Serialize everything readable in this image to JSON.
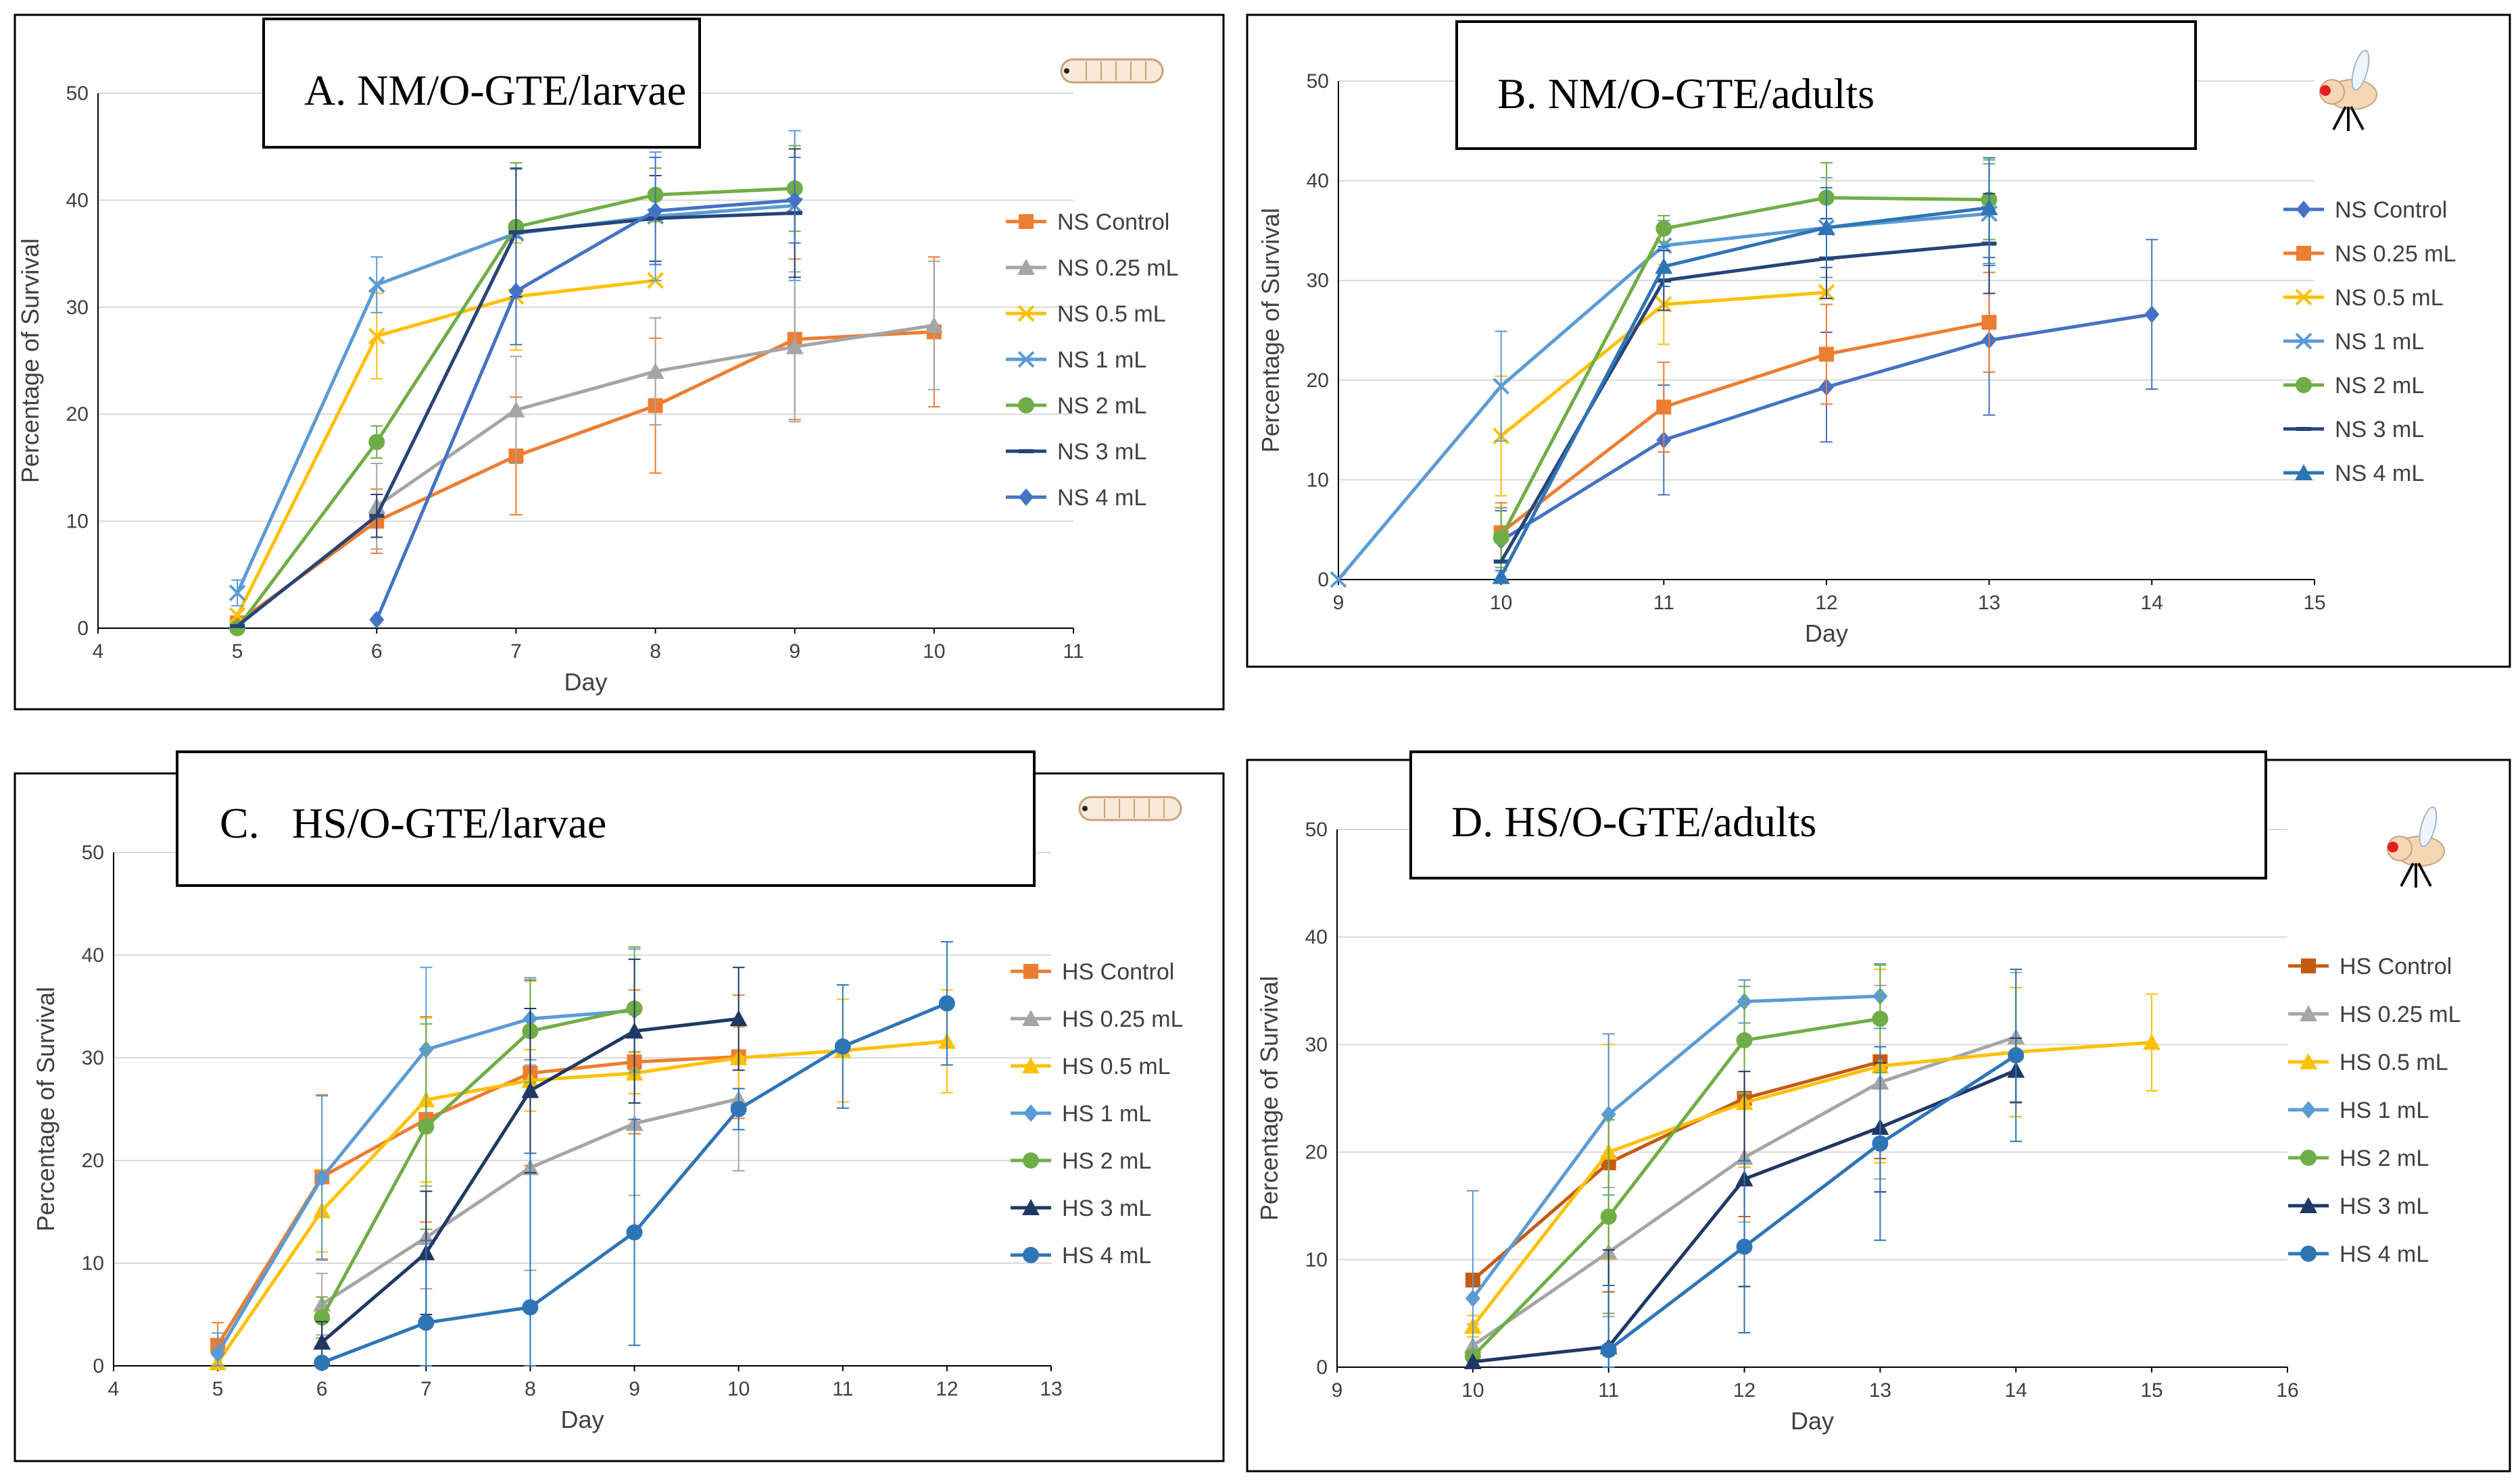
{
  "chart_data": [
    {
      "type": "line",
      "title": "A. NM/O-GTE/larvae",
      "xlabel": "Day",
      "ylabel": "Percentage of Survival",
      "xlim": [
        4,
        11
      ],
      "ylim": [
        0,
        50
      ],
      "xticks": [
        "4",
        "5",
        "6",
        "7",
        "8",
        "9",
        "10",
        "11"
      ],
      "yticks": [
        "0",
        "10",
        "20",
        "30",
        "40",
        "50"
      ],
      "grid": true,
      "legend_position": "right",
      "icon": "larva-icon",
      "series": [
        {
          "name": "NS Control",
          "color": "#ED7D31",
          "marker": "square",
          "x": [
            5,
            6,
            7,
            8,
            9,
            10
          ],
          "y": [
            0.5,
            10,
            16.1,
            20.8,
            27,
            27.7
          ],
          "err": [
            0,
            3,
            5.5,
            6.3,
            7.5,
            7
          ]
        },
        {
          "name": "NS 0.25 mL",
          "color": "#A5A5A5",
          "marker": "triangle",
          "x": [
            6,
            7,
            8,
            9,
            10
          ],
          "y": [
            11.4,
            20.4,
            24,
            26.3,
            28.3
          ],
          "err": [
            4,
            5,
            5,
            7,
            6
          ]
        },
        {
          "name": "NS 0.5 mL",
          "color": "#FFC000",
          "marker": "x",
          "x": [
            5,
            6,
            7,
            8
          ],
          "y": [
            1.2,
            27.3,
            31,
            32.5
          ],
          "err": [
            0,
            4,
            5,
            0
          ]
        },
        {
          "name": "NS 1 mL",
          "color": "#5B9BD5",
          "marker": "x",
          "x": [
            5,
            6,
            7,
            8,
            9
          ],
          "y": [
            3.3,
            32.1,
            36.9,
            38.5,
            39.5
          ],
          "err": [
            1.2,
            2.6,
            6,
            6,
            7
          ]
        },
        {
          "name": "NS 2 mL",
          "color": "#70AD47",
          "marker": "circle",
          "x": [
            5,
            6,
            7,
            8,
            9
          ],
          "y": [
            0,
            17.4,
            37.5,
            40.5,
            41.1
          ],
          "err": [
            0,
            1.5,
            6,
            2.5,
            4
          ]
        },
        {
          "name": "NS 3 mL",
          "color": "#264478",
          "marker": "dash",
          "x": [
            5,
            6,
            7,
            8,
            9
          ],
          "y": [
            0.2,
            10.5,
            37,
            38.3,
            38.8
          ],
          "err": [
            0,
            2,
            6,
            4,
            6
          ]
        },
        {
          "name": "NS 4 mL",
          "color": "#4472C4",
          "marker": "diamond",
          "x": [
            6,
            7,
            8,
            9
          ],
          "y": [
            0.8,
            31.5,
            39,
            40
          ],
          "err": [
            0,
            5,
            5,
            4
          ]
        }
      ]
    },
    {
      "type": "line",
      "title": "B. NM/O-GTE/adults",
      "xlabel": "Day",
      "ylabel": "Percentage of Survival",
      "xlim": [
        9,
        15
      ],
      "ylim": [
        0,
        50
      ],
      "xticks": [
        "9",
        "10",
        "11",
        "12",
        "13",
        "14",
        "15"
      ],
      "yticks": [
        "0",
        "10",
        "20",
        "30",
        "40",
        "50"
      ],
      "grid": true,
      "legend_position": "right",
      "icon": "fly-icon",
      "series": [
        {
          "name": "NS Control",
          "color": "#4472C4",
          "marker": "diamond",
          "x": [
            10,
            11,
            12,
            13,
            14
          ],
          "y": [
            3.9,
            14,
            19.3,
            24,
            26.6
          ],
          "err": [
            3,
            5.5,
            5.5,
            7.5,
            7.5
          ]
        },
        {
          "name": "NS 0.25 mL",
          "color": "#ED7D31",
          "marker": "square",
          "x": [
            10,
            11,
            12,
            13
          ],
          "y": [
            4.7,
            17.3,
            22.6,
            25.8
          ],
          "err": [
            3,
            4.5,
            5,
            5
          ]
        },
        {
          "name": "NS 0.5 mL",
          "color": "#FFC000",
          "marker": "x",
          "x": [
            10,
            11,
            12
          ],
          "y": [
            14.4,
            27.6,
            28.8
          ],
          "err": [
            6,
            4,
            0
          ]
        },
        {
          "name": "NS 1 mL",
          "color": "#5B9BD5",
          "marker": "x",
          "x": [
            9,
            10,
            11,
            12,
            13
          ],
          "y": [
            0,
            19.4,
            33.5,
            35.3,
            36.7
          ],
          "err": [
            0,
            5.5,
            2.5,
            5,
            5
          ]
        },
        {
          "name": "NS 2 mL",
          "color": "#70AD47",
          "marker": "circle",
          "x": [
            10,
            11,
            12,
            13
          ],
          "y": [
            4.2,
            35.2,
            38.3,
            38.1
          ],
          "err": [
            3,
            1.3,
            3.5,
            4
          ]
        },
        {
          "name": "NS 3 mL",
          "color": "#264478",
          "marker": "dash",
          "x": [
            10,
            11,
            12,
            13
          ],
          "y": [
            1.8,
            30,
            32.2,
            33.7
          ],
          "err": [
            0,
            3,
            4,
            5
          ]
        },
        {
          "name": "NS 4 mL",
          "color": "#2E75B6",
          "marker": "triangle",
          "x": [
            10,
            11,
            12,
            13
          ],
          "y": [
            0.3,
            31.4,
            35.3,
            37.3
          ],
          "err": [
            0,
            2,
            4,
            5
          ]
        }
      ]
    },
    {
      "type": "line",
      "title": "C.   HS/O-GTE/larvae",
      "xlabel": "Day",
      "ylabel": "Percentage of Survival",
      "xlim": [
        4,
        13
      ],
      "ylim": [
        0,
        50
      ],
      "xticks": [
        "4",
        "5",
        "6",
        "7",
        "8",
        "9",
        "10",
        "11",
        "12",
        "13"
      ],
      "yticks": [
        "0",
        "10",
        "20",
        "30",
        "40",
        "50"
      ],
      "grid": true,
      "legend_position": "right",
      "icon": "larva-icon",
      "series": [
        {
          "name": "HS Control",
          "color": "#ED7D31",
          "marker": "square",
          "x": [
            5,
            6,
            7,
            8,
            9,
            10
          ],
          "y": [
            2,
            18.4,
            24,
            28.5,
            29.6,
            30.1
          ],
          "err": [
            2.2,
            8,
            10,
            9,
            7,
            6
          ]
        },
        {
          "name": "HS 0.25 mL",
          "color": "#A5A5A5",
          "marker": "triangle",
          "x": [
            6,
            7,
            8,
            9,
            10
          ],
          "y": [
            6,
            12.5,
            19.3,
            23.6,
            26
          ],
          "err": [
            3,
            5,
            10,
            7,
            7
          ]
        },
        {
          "name": "HS 0.5 mL",
          "color": "#FFC000",
          "marker": "triangle",
          "x": [
            5,
            6,
            7,
            8,
            9,
            10,
            11,
            12
          ],
          "y": [
            0.3,
            15.1,
            25.9,
            27.8,
            28.5,
            30,
            30.7,
            31.6
          ],
          "err": [
            0,
            4,
            8,
            3,
            2,
            3,
            5,
            5
          ]
        },
        {
          "name": "HS 1 mL",
          "color": "#5B9BD5",
          "marker": "diamond",
          "x": [
            5,
            6,
            7,
            8,
            9
          ],
          "y": [
            1.2,
            18.3,
            30.8,
            33.8,
            34.6
          ],
          "err": [
            2,
            8,
            8,
            4,
            6
          ]
        },
        {
          "name": "HS 2 mL",
          "color": "#70AD47",
          "marker": "circle",
          "x": [
            6,
            7,
            8,
            9
          ],
          "y": [
            4.7,
            23.3,
            32.6,
            34.8
          ],
          "err": [
            2,
            10,
            5,
            6
          ]
        },
        {
          "name": "HS 3 mL",
          "color": "#1F3864",
          "marker": "triangle",
          "x": [
            6,
            7,
            8,
            9,
            10
          ],
          "y": [
            2.3,
            11,
            26.8,
            32.6,
            33.8
          ],
          "err": [
            2,
            6,
            8,
            7,
            5
          ]
        },
        {
          "name": "HS 4 mL",
          "color": "#2E75B6",
          "marker": "circle",
          "x": [
            6,
            7,
            8,
            9,
            10,
            11,
            12
          ],
          "y": [
            0.3,
            4.2,
            5.7,
            13,
            25,
            31.1,
            35.3
          ],
          "err": [
            0,
            8,
            15,
            11,
            2,
            6,
            6
          ]
        }
      ]
    },
    {
      "type": "line",
      "title": "D. HS/O-GTE/adults",
      "xlabel": "Day",
      "ylabel": "Percentage of Survival",
      "xlim": [
        9,
        16
      ],
      "ylim": [
        0,
        50
      ],
      "xticks": [
        "9",
        "10",
        "11",
        "12",
        "13",
        "14",
        "15",
        "16"
      ],
      "yticks": [
        "0",
        "10",
        "20",
        "30",
        "40",
        "50"
      ],
      "grid": true,
      "legend_position": "right",
      "icon": "fly-icon",
      "series": [
        {
          "name": "HS Control",
          "color": "#C55A11",
          "marker": "square",
          "x": [
            10,
            11,
            12,
            13
          ],
          "y": [
            8.1,
            19,
            25,
            28.4
          ],
          "err": [
            0,
            12,
            11,
            9
          ]
        },
        {
          "name": "HS 0.25 mL",
          "color": "#A5A5A5",
          "marker": "triangle",
          "x": [
            10,
            11,
            12,
            13,
            14
          ],
          "y": [
            2,
            10.7,
            19.5,
            26.5,
            30.7
          ],
          "err": [
            2,
            6,
            6,
            9,
            6
          ]
        },
        {
          "name": "HS 0.5 mL",
          "color": "#FFC000",
          "marker": "triangle",
          "x": [
            10,
            11,
            12,
            13,
            14,
            15
          ],
          "y": [
            3.8,
            20,
            24.6,
            28,
            29.3,
            30.2
          ],
          "err": [
            1,
            10,
            6,
            9,
            6,
            4.5
          ]
        },
        {
          "name": "HS 1 mL",
          "color": "#5B9BD5",
          "marker": "diamond",
          "x": [
            10,
            11,
            12,
            13
          ],
          "y": [
            6.4,
            23.5,
            34,
            34.5
          ],
          "err": [
            10,
            7.5,
            2,
            3
          ]
        },
        {
          "name": "HS 2 mL",
          "color": "#70AD47",
          "marker": "circle",
          "x": [
            10,
            11,
            12,
            13
          ],
          "y": [
            1,
            14,
            30.4,
            32.4
          ],
          "err": [
            0,
            9,
            5,
            5
          ]
        },
        {
          "name": "HS 3 mL",
          "color": "#1F3864",
          "marker": "triangle",
          "x": [
            10,
            11,
            12,
            13,
            14
          ],
          "y": [
            0.5,
            1.9,
            17.5,
            22.3,
            27.6
          ],
          "err": [
            0,
            9,
            10,
            6,
            3
          ]
        },
        {
          "name": "HS 4 mL",
          "color": "#2E75B6",
          "marker": "circle",
          "x": [
            11,
            12,
            13,
            14
          ],
          "y": [
            1.6,
            11.2,
            20.8,
            29
          ],
          "err": [
            6,
            8,
            9,
            8
          ]
        }
      ]
    }
  ]
}
